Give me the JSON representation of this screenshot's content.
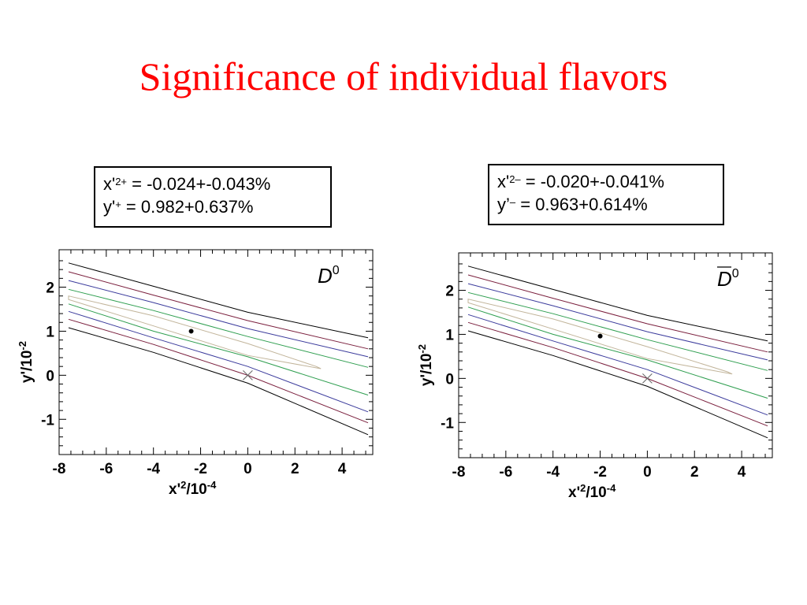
{
  "slide": {
    "title": "Significance of individual flavors"
  },
  "boxes": [
    {
      "x_prefix": "x'",
      "x_sup": "2+",
      "x_value": " = -0.024+-0.043%",
      "y_prefix": "y'",
      "y_sup": "+",
      "y_value": "  =  0.982+0.637%"
    },
    {
      "x_prefix": "x'",
      "x_sup": "2–",
      "x_value": " = -0.020+-0.041%",
      "y_prefix": "y’",
      "y_sup": "–",
      "y_value": "  =  0.963+0.614%"
    }
  ],
  "chart_data": [
    {
      "type": "contour",
      "label": "D⁰",
      "label_overline": false,
      "xlabel": "x'2/10-4",
      "ylabel": "y'/10-2",
      "xlim": [
        -8,
        5.3
      ],
      "ylim": [
        -1.8,
        2.85
      ],
      "x_ticks": [
        -8,
        -6,
        -4,
        -2,
        0,
        2,
        4
      ],
      "y_ticks": [
        -1,
        0,
        1,
        2
      ],
      "best_fit": {
        "x": -2.4,
        "y": 1.0
      },
      "no_mixing_point": {
        "x": 0,
        "y": 0
      },
      "contours": [
        {
          "color": "#000000",
          "upper": [
            [
              -7.6,
              2.55
            ],
            [
              -4,
              2.02
            ],
            [
              0,
              1.43
            ],
            [
              5.1,
              0.85
            ]
          ],
          "lower": [
            [
              -7.6,
              1.08
            ],
            [
              -4,
              0.52
            ],
            [
              0,
              -0.18
            ],
            [
              5.1,
              -1.35
            ]
          ]
        },
        {
          "color": "#7a1f3d",
          "upper": [
            [
              -7.6,
              2.35
            ],
            [
              -4,
              1.82
            ],
            [
              0,
              1.24
            ],
            [
              5.1,
              0.6
            ]
          ],
          "lower": [
            [
              -7.6,
              1.27
            ],
            [
              -4,
              0.7
            ],
            [
              0,
              0.0
            ],
            [
              5.1,
              -1.08
            ]
          ]
        },
        {
          "color": "#3b3b9c",
          "upper": [
            [
              -7.6,
              2.15
            ],
            [
              -4,
              1.65
            ],
            [
              0,
              1.06
            ],
            [
              5.1,
              0.42
            ]
          ],
          "lower": [
            [
              -7.6,
              1.45
            ],
            [
              -4,
              0.85
            ],
            [
              0,
              0.2
            ],
            [
              5.1,
              -0.83
            ]
          ]
        },
        {
          "color": "#2e9e4f",
          "upper": [
            [
              -7.6,
              1.95
            ],
            [
              -4,
              1.47
            ],
            [
              0,
              0.88
            ],
            [
              5.1,
              0.18
            ]
          ],
          "lower": [
            [
              -7.6,
              1.62
            ],
            [
              -4,
              1.0
            ],
            [
              0,
              0.42
            ],
            [
              5.1,
              -0.45
            ]
          ]
        },
        {
          "color": "#c2b59b",
          "closed": true,
          "points": [
            [
              -7.6,
              1.8
            ],
            [
              -4,
              1.35
            ],
            [
              0,
              0.72
            ],
            [
              2.9,
              0.2
            ],
            [
              3.1,
              0.15
            ],
            [
              0,
              0.45
            ],
            [
              -4,
              1.12
            ],
            [
              -7.6,
              1.72
            ]
          ]
        }
      ]
    },
    {
      "type": "contour",
      "label": "D⁰",
      "label_overline": true,
      "xlabel": "x'2/10-4",
      "ylabel": "y'/10-2",
      "xlim": [
        -8,
        5.3
      ],
      "ylim": [
        -1.8,
        2.85
      ],
      "x_ticks": [
        -8,
        -6,
        -4,
        -2,
        0,
        2,
        4
      ],
      "y_ticks": [
        -1,
        0,
        1,
        2
      ],
      "best_fit": {
        "x": -2.0,
        "y": 0.96
      },
      "no_mixing_point": {
        "x": 0,
        "y": 0
      },
      "contours": [
        {
          "color": "#000000",
          "upper": [
            [
              -7.6,
              2.55
            ],
            [
              -4,
              2.02
            ],
            [
              0,
              1.43
            ],
            [
              5.1,
              0.85
            ]
          ],
          "lower": [
            [
              -7.6,
              1.08
            ],
            [
              -4,
              0.52
            ],
            [
              0,
              -0.18
            ],
            [
              5.1,
              -1.35
            ]
          ]
        },
        {
          "color": "#7a1f3d",
          "upper": [
            [
              -7.6,
              2.35
            ],
            [
              -4,
              1.82
            ],
            [
              0,
              1.24
            ],
            [
              5.1,
              0.6
            ]
          ],
          "lower": [
            [
              -7.6,
              1.27
            ],
            [
              -4,
              0.7
            ],
            [
              0,
              0.0
            ],
            [
              5.1,
              -1.08
            ]
          ]
        },
        {
          "color": "#3b3b9c",
          "upper": [
            [
              -7.6,
              2.15
            ],
            [
              -4,
              1.65
            ],
            [
              0,
              1.06
            ],
            [
              5.1,
              0.42
            ]
          ],
          "lower": [
            [
              -7.6,
              1.45
            ],
            [
              -4,
              0.85
            ],
            [
              0,
              0.2
            ],
            [
              5.1,
              -0.83
            ]
          ]
        },
        {
          "color": "#2e9e4f",
          "upper": [
            [
              -7.6,
              1.95
            ],
            [
              -4,
              1.47
            ],
            [
              0,
              0.88
            ],
            [
              5.1,
              0.18
            ]
          ],
          "lower": [
            [
              -7.6,
              1.62
            ],
            [
              -4,
              1.0
            ],
            [
              0,
              0.42
            ],
            [
              5.1,
              -0.45
            ]
          ]
        },
        {
          "color": "#c2b59b",
          "closed": true,
          "points": [
            [
              -7.6,
              1.8
            ],
            [
              -4,
              1.35
            ],
            [
              0,
              0.72
            ],
            [
              3.4,
              0.15
            ],
            [
              3.6,
              0.1
            ],
            [
              0,
              0.45
            ],
            [
              -4,
              1.12
            ],
            [
              -7.6,
              1.72
            ]
          ]
        }
      ]
    }
  ]
}
